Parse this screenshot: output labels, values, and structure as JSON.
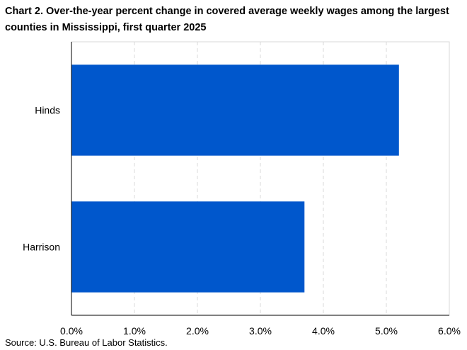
{
  "chart_title": "Chart 2. Over-the-year percent change in covered average weekly wages among the largest counties in Mississippi, first quarter 2025",
  "source": "Source: U.S. Bureau of Labor Statistics.",
  "colors": {
    "bar": "#0057CC",
    "grid": "#D9D9D9",
    "axis": "#000000"
  },
  "chart_data": {
    "type": "bar",
    "orientation": "horizontal",
    "title": "Chart 2. Over-the-year percent change in covered average weekly wages among the largest counties in Mississippi, first quarter 2025",
    "categories": [
      "Hinds",
      "Harrison"
    ],
    "values": [
      5.2,
      3.7
    ],
    "xlim": [
      0,
      6
    ],
    "x_ticks": [
      0,
      1,
      2,
      3,
      4,
      5,
      6
    ],
    "x_tick_labels": [
      "0.0%",
      "1.0%",
      "2.0%",
      "3.0%",
      "4.0%",
      "5.0%",
      "6.0%"
    ],
    "grid": "vertical dashed",
    "legend": "none",
    "xlabel": "",
    "ylabel": ""
  }
}
